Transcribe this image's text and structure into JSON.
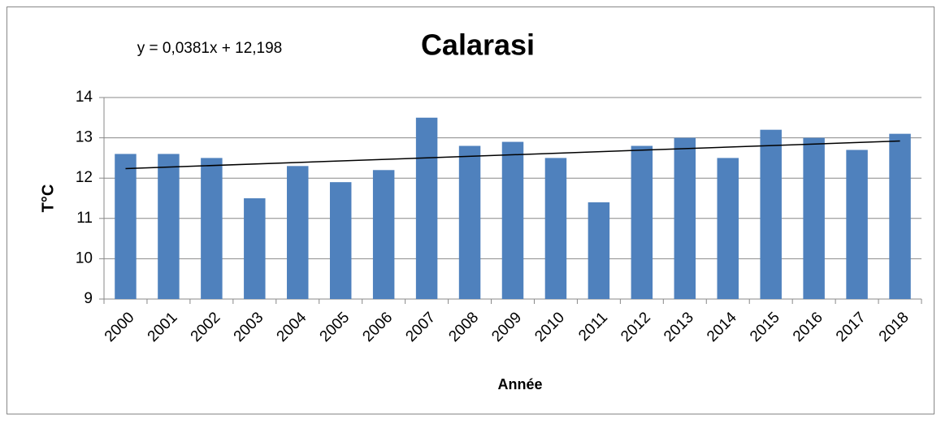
{
  "chart_data": {
    "type": "bar",
    "title": "Calarasi",
    "x_label": "Année",
    "y_label": "T°C",
    "categories": [
      "2000",
      "2001",
      "2002",
      "2003",
      "2004",
      "2005",
      "2006",
      "2007",
      "2008",
      "2009",
      "2010",
      "2011",
      "2012",
      "2013",
      "2014",
      "2015",
      "2016",
      "2017",
      "2018"
    ],
    "values": [
      12.6,
      12.6,
      12.5,
      11.5,
      12.3,
      11.9,
      12.2,
      13.5,
      12.8,
      12.9,
      12.5,
      11.4,
      12.8,
      13.0,
      12.5,
      13.2,
      13.0,
      12.7,
      13.1
    ],
    "color": "#4f81bd",
    "ylim": [
      9,
      14
    ],
    "yticks": [
      9,
      10,
      11,
      12,
      13,
      14
    ],
    "grid": true,
    "trendline": {
      "label": "y = 0,0381x + 12,198",
      "slope": 0.0381,
      "intercept": 12.198,
      "color": "#000000"
    }
  }
}
